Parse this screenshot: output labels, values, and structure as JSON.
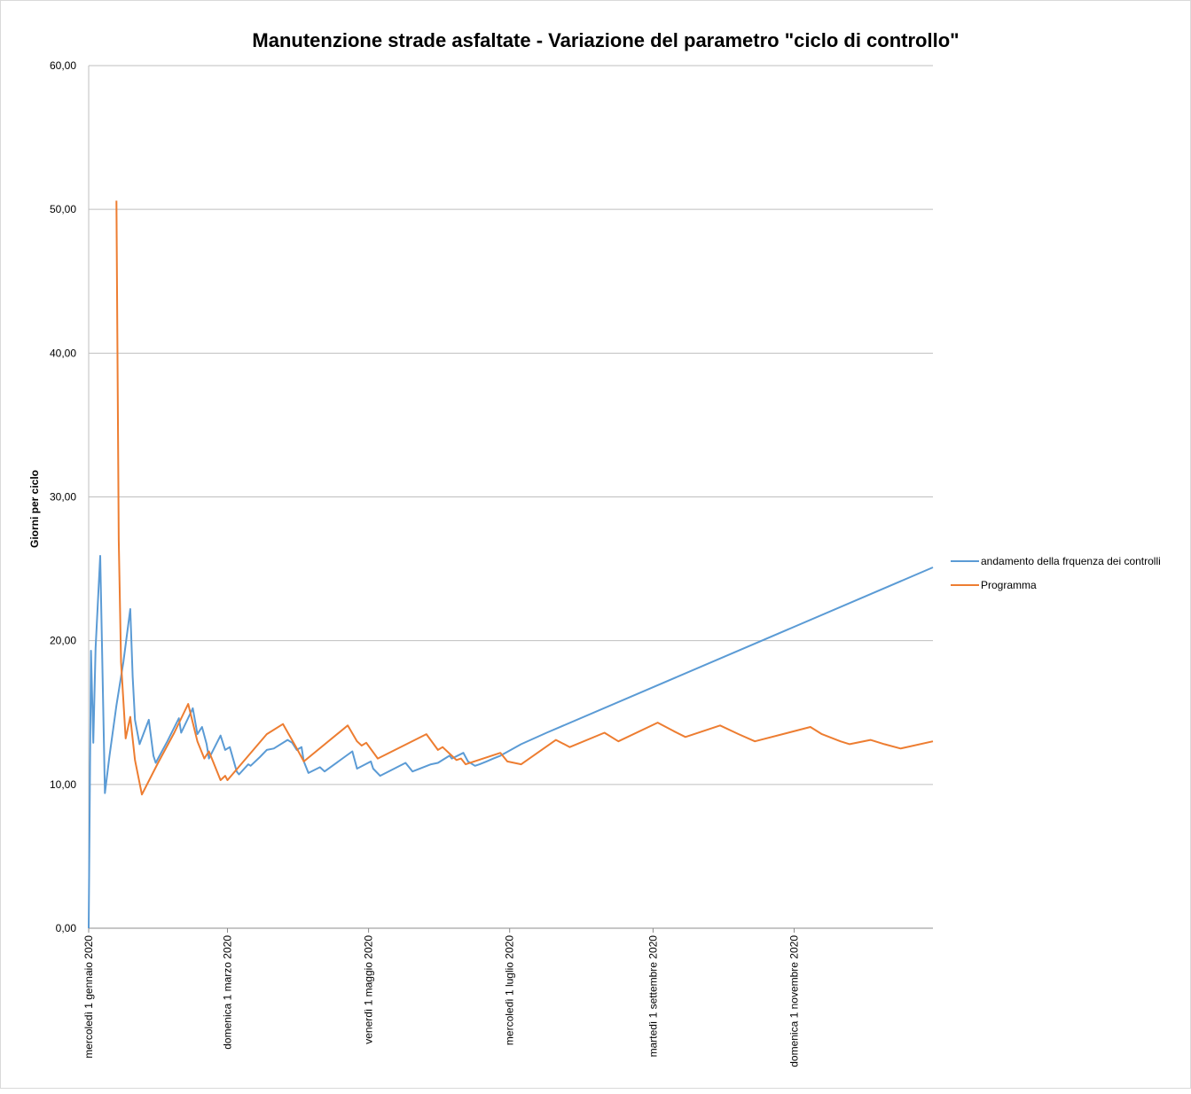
{
  "chart_data": {
    "type": "line",
    "title": "Manutenzione strade asfaltate - Variazione del parametro \"ciclo di controllo\"",
    "xlabel": "",
    "ylabel": "Giorni per ciclo",
    "ylim": [
      0,
      60
    ],
    "xlim": [
      "2020-01-01",
      "2020-12-31"
    ],
    "y_ticks": [
      "0,00",
      "10,00",
      "20,00",
      "30,00",
      "40,00",
      "50,00",
      "60,00"
    ],
    "x_ticks": [
      {
        "date": "2020-01-01",
        "label": "mercoledì 1 gennaio 2020"
      },
      {
        "date": "2020-03-01",
        "label": "domenica 1 marzo 2020"
      },
      {
        "date": "2020-05-01",
        "label": "venerdì 1 maggio 2020"
      },
      {
        "date": "2020-07-01",
        "label": "mercoledì 1 luglio 2020"
      },
      {
        "date": "2020-09-01",
        "label": "martedì 1 settembre 2020"
      },
      {
        "date": "2020-11-01",
        "label": "domenica 1 novembre 2020"
      }
    ],
    "grid": true,
    "legend_position": "right",
    "series": [
      {
        "name": "andamento della frquenza dei controlli",
        "color": "#5B9BD5",
        "points": [
          [
            "2020-01-01",
            0.0
          ],
          [
            "2020-01-02",
            19.3
          ],
          [
            "2020-01-03",
            12.9
          ],
          [
            "2020-01-04",
            19.5
          ],
          [
            "2020-01-06",
            25.9
          ],
          [
            "2020-01-08",
            9.4
          ],
          [
            "2020-01-10",
            12.0
          ],
          [
            "2020-01-13",
            15.5
          ],
          [
            "2020-01-16",
            18.5
          ],
          [
            "2020-01-19",
            22.2
          ],
          [
            "2020-01-20",
            17.5
          ],
          [
            "2020-01-21",
            14.5
          ],
          [
            "2020-01-23",
            12.8
          ],
          [
            "2020-01-27",
            14.5
          ],
          [
            "2020-01-29",
            12.0
          ],
          [
            "2020-01-30",
            11.5
          ],
          [
            "2020-02-04",
            13.0
          ],
          [
            "2020-02-09",
            14.6
          ],
          [
            "2020-02-10",
            13.6
          ],
          [
            "2020-02-15",
            15.3
          ],
          [
            "2020-02-17",
            13.5
          ],
          [
            "2020-02-19",
            14.0
          ],
          [
            "2020-02-21",
            12.8
          ],
          [
            "2020-02-22",
            11.8
          ],
          [
            "2020-02-27",
            13.4
          ],
          [
            "2020-02-29",
            12.4
          ],
          [
            "2020-03-02",
            12.6
          ],
          [
            "2020-03-05",
            10.9
          ],
          [
            "2020-03-06",
            10.7
          ],
          [
            "2020-03-10",
            11.4
          ],
          [
            "2020-03-11",
            11.3
          ],
          [
            "2020-03-15",
            11.9
          ],
          [
            "2020-03-18",
            12.4
          ],
          [
            "2020-03-21",
            12.5
          ],
          [
            "2020-03-27",
            13.1
          ],
          [
            "2020-03-29",
            12.9
          ],
          [
            "2020-03-31",
            12.4
          ],
          [
            "2020-04-02",
            12.6
          ],
          [
            "2020-04-03",
            11.6
          ],
          [
            "2020-04-05",
            10.8
          ],
          [
            "2020-04-10",
            11.2
          ],
          [
            "2020-04-12",
            10.9
          ],
          [
            "2020-04-24",
            12.3
          ],
          [
            "2020-04-26",
            11.1
          ],
          [
            "2020-05-02",
            11.6
          ],
          [
            "2020-05-03",
            11.1
          ],
          [
            "2020-05-06",
            10.6
          ],
          [
            "2020-05-17",
            11.5
          ],
          [
            "2020-05-20",
            10.9
          ],
          [
            "2020-05-28",
            11.4
          ],
          [
            "2020-05-31",
            11.5
          ],
          [
            "2020-06-05",
            12.0
          ],
          [
            "2020-06-06",
            11.8
          ],
          [
            "2020-06-11",
            12.2
          ],
          [
            "2020-06-13",
            11.6
          ],
          [
            "2020-06-16",
            11.3
          ],
          [
            "2020-06-18",
            11.4
          ],
          [
            "2020-06-21",
            11.6
          ],
          [
            "2020-06-24",
            11.8
          ],
          [
            "2020-06-27",
            12.0
          ],
          [
            "2020-07-06",
            12.8
          ],
          [
            "2020-07-17",
            13.6
          ],
          [
            "2020-12-31",
            25.1
          ]
        ]
      },
      {
        "name": "Programma",
        "color": "#ED7D31",
        "points": [
          [
            "2020-01-13",
            50.6
          ],
          [
            "2020-01-14",
            27.0
          ],
          [
            "2020-01-15",
            18.5
          ],
          [
            "2020-01-17",
            13.2
          ],
          [
            "2020-01-19",
            14.7
          ],
          [
            "2020-01-21",
            11.7
          ],
          [
            "2020-01-24",
            9.3
          ],
          [
            "2020-01-31",
            11.5
          ],
          [
            "2020-02-07",
            13.6
          ],
          [
            "2020-02-13",
            15.6
          ],
          [
            "2020-02-17",
            13.0
          ],
          [
            "2020-02-20",
            11.8
          ],
          [
            "2020-02-22",
            12.3
          ],
          [
            "2020-02-27",
            10.3
          ],
          [
            "2020-02-29",
            10.6
          ],
          [
            "2020-03-01",
            10.3
          ],
          [
            "2020-03-18",
            13.5
          ],
          [
            "2020-03-25",
            14.2
          ],
          [
            "2020-03-31",
            12.5
          ],
          [
            "2020-04-03",
            11.6
          ],
          [
            "2020-04-22",
            14.1
          ],
          [
            "2020-04-26",
            13.0
          ],
          [
            "2020-04-28",
            12.7
          ],
          [
            "2020-04-30",
            12.9
          ],
          [
            "2020-05-05",
            11.8
          ],
          [
            "2020-05-26",
            13.5
          ],
          [
            "2020-05-31",
            12.4
          ],
          [
            "2020-06-02",
            12.6
          ],
          [
            "2020-06-08",
            11.7
          ],
          [
            "2020-06-10",
            11.8
          ],
          [
            "2020-06-12",
            11.4
          ],
          [
            "2020-06-27",
            12.2
          ],
          [
            "2020-06-30",
            11.6
          ],
          [
            "2020-07-03",
            11.5
          ],
          [
            "2020-07-06",
            11.4
          ],
          [
            "2020-07-21",
            13.1
          ],
          [
            "2020-07-27",
            12.6
          ],
          [
            "2020-08-11",
            13.6
          ],
          [
            "2020-08-17",
            13.0
          ],
          [
            "2020-09-03",
            14.3
          ],
          [
            "2020-09-10",
            13.7
          ],
          [
            "2020-09-15",
            13.3
          ],
          [
            "2020-09-30",
            14.1
          ],
          [
            "2020-10-08",
            13.5
          ],
          [
            "2020-10-15",
            13.0
          ],
          [
            "2020-11-08",
            14.0
          ],
          [
            "2020-11-13",
            13.5
          ],
          [
            "2020-11-21",
            13.0
          ],
          [
            "2020-11-25",
            12.8
          ],
          [
            "2020-12-04",
            13.1
          ],
          [
            "2020-12-10",
            12.8
          ],
          [
            "2020-12-17",
            12.5
          ],
          [
            "2020-12-31",
            13.0
          ]
        ]
      }
    ]
  }
}
